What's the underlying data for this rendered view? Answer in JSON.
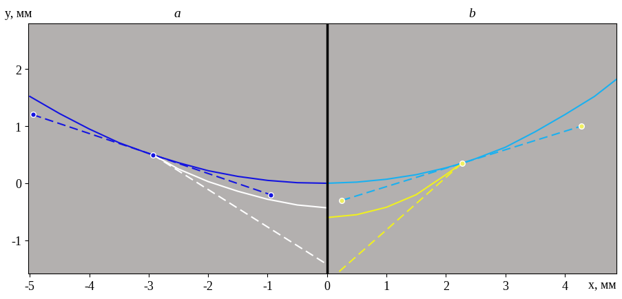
{
  "chart_data": {
    "type": "line",
    "x_label": "x, мм",
    "y_label": "y, мм",
    "panels": [
      "a",
      "b"
    ],
    "boundary_x": 0,
    "xlim": [
      -5.03,
      4.87
    ],
    "ylim": [
      -1.58,
      2.8
    ],
    "xticks": [
      -5,
      -4,
      -3,
      -2,
      -1,
      0,
      1,
      2,
      3,
      4
    ],
    "yticks": [
      -1,
      0,
      1,
      2
    ],
    "grid": false,
    "series": [
      {
        "type": "line",
        "color": "#1414e0",
        "line_style": "solid",
        "x": [
          -5,
          -4.5,
          -4,
          -3.5,
          -3,
          -2.5,
          -2,
          -1.5,
          -1,
          -0.5,
          0
        ],
        "values": [
          1.52,
          1.22,
          0.95,
          0.71,
          0.52,
          0.36,
          0.22,
          0.12,
          0.05,
          0.01,
          0.0
        ]
      },
      {
        "type": "line",
        "color": "#ffffff",
        "line_style": "solid",
        "x": [
          -2.93,
          -2.5,
          -2,
          -1.5,
          -1,
          -0.5,
          0
        ],
        "values": [
          0.5,
          0.25,
          0.03,
          -0.14,
          -0.28,
          -0.38,
          -0.43
        ]
      },
      {
        "type": "line",
        "color": "#1414e0",
        "line_style": "dashed",
        "x": [
          -4.95,
          -2.93,
          -0.95
        ],
        "values": [
          1.2,
          0.5,
          -0.2
        ]
      },
      {
        "type": "line",
        "color": "#ffffff",
        "line_style": "dashed",
        "x": [
          -2.93,
          0
        ],
        "values": [
          0.5,
          -1.42
        ]
      },
      {
        "type": "scatter",
        "color": "#1414e0",
        "marker": "circle",
        "x": [
          -4.95,
          -2.93,
          -0.95
        ],
        "values": [
          1.2,
          0.5,
          -0.2
        ]
      },
      {
        "type": "line",
        "color": "#1ab0f0",
        "line_style": "solid",
        "x": [
          0,
          0.5,
          1,
          1.5,
          2,
          2.27,
          2.5,
          3,
          3.5,
          4,
          4.5,
          4.87
        ],
        "values": [
          0.0,
          0.02,
          0.07,
          0.15,
          0.27,
          0.35,
          0.43,
          0.63,
          0.9,
          1.2,
          1.52,
          1.82
        ]
      },
      {
        "type": "line",
        "color": "#f0f020",
        "line_style": "solid",
        "x": [
          0,
          0.5,
          1,
          1.5,
          2,
          2.27
        ],
        "values": [
          -0.6,
          -0.55,
          -0.42,
          -0.2,
          0.15,
          0.35
        ]
      },
      {
        "type": "line",
        "color": "#1ab0f0",
        "line_style": "dashed",
        "x": [
          0.25,
          2.27,
          4.28
        ],
        "values": [
          -0.3,
          0.35,
          1.0
        ]
      },
      {
        "type": "line",
        "color": "#f0f020",
        "line_style": "dashed",
        "x": [
          2.27,
          0.2
        ],
        "values": [
          0.35,
          -1.55
        ]
      },
      {
        "type": "scatter",
        "color": "#f0f060",
        "marker": "circle",
        "x": [
          0.25,
          2.27,
          4.28
        ],
        "values": [
          -0.3,
          0.35,
          1.0
        ]
      }
    ]
  }
}
